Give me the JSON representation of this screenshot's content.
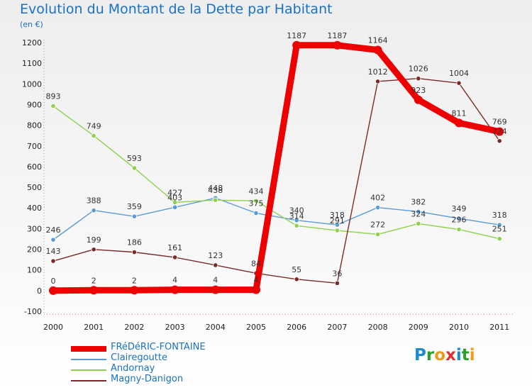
{
  "title": "Evolution du Montant de la Dette par Habitant",
  "subtitle": "(en €)",
  "brand": {
    "text": "Proxiti",
    "letter_colors": [
      "#1e88d0",
      "#2aa02a",
      "#f09a1a",
      "#d93030",
      "#1e88d0",
      "#2aa02a",
      "#f09a1a"
    ]
  },
  "chart_data": {
    "type": "line",
    "title": "Evolution du Montant de la Dette par Habitant",
    "subtitle": "(en €)",
    "xlabel": "",
    "ylabel": "",
    "x": [
      "2000",
      "2001",
      "2002",
      "2003",
      "2004",
      "2005",
      "2006",
      "2007",
      "2008",
      "2009",
      "2010",
      "2011"
    ],
    "ylim": [
      -100,
      1200
    ],
    "yticks": [
      "-100",
      "0",
      "100",
      "200",
      "300",
      "400",
      "500",
      "600",
      "700",
      "800",
      "900",
      "1000",
      "1100",
      "1200"
    ],
    "grid": false,
    "legend_position": "bottom-left",
    "series": [
      {
        "name": "FRéDéRIC-FONTAINE",
        "color": "#ee0000",
        "emphasis": true,
        "values": [
          0,
          2,
          2,
          4,
          4,
          4,
          1187,
          1187,
          1164,
          923,
          811,
          769
        ],
        "labels": [
          "0",
          "2",
          "2",
          "4",
          "4",
          "4",
          "1187",
          "1187",
          "1164",
          "923",
          "811",
          "769"
        ]
      },
      {
        "name": "Clairegoutte",
        "color": "#5b9bd5",
        "values": [
          246,
          388,
          359,
          403,
          448,
          375,
          340,
          318,
          402,
          382,
          349,
          318
        ],
        "labels": [
          "246",
          "388",
          "359",
          "403",
          "448",
          "375",
          "340",
          "318",
          "402",
          "382",
          "349",
          "318"
        ]
      },
      {
        "name": "Andornay",
        "color": "#8fd14f",
        "values": [
          893,
          749,
          593,
          427,
          438,
          434,
          314,
          291,
          272,
          324,
          296,
          251
        ],
        "labels": [
          "893",
          "749",
          "593",
          "427",
          "438",
          "434",
          "314",
          "291",
          "272",
          "324",
          "296",
          "251"
        ]
      },
      {
        "name": "Magny-Danigon",
        "color": "#7b2a2a",
        "values": [
          143,
          199,
          186,
          161,
          123,
          84,
          55,
          36,
          1012,
          1026,
          1004,
          724
        ],
        "labels": [
          "143",
          "199",
          "186",
          "161",
          "123",
          "84",
          "55",
          "36",
          "1012",
          "1026",
          "1004",
          "724"
        ]
      }
    ]
  }
}
